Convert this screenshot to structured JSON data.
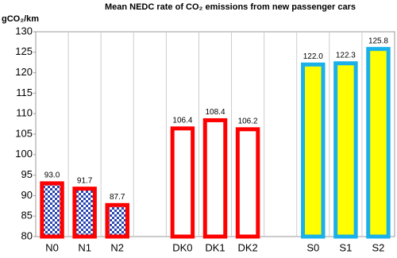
{
  "chart_data": {
    "type": "bar",
    "title": "Mean NEDC rate of CO₂ emissions from new passenger cars",
    "y_label": "gCO₂/km",
    "categories": [
      "N0",
      "N1",
      "N2",
      null,
      "DK0",
      "DK1",
      "DK2",
      null,
      "S0",
      "S1",
      "S2"
    ],
    "series": [
      {
        "color": "#ff0000",
        "fill": "#2a46b0",
        "pattern": "checker",
        "values": [
          93.0,
          91.7,
          87.7,
          null,
          null,
          null,
          null,
          null,
          null,
          null,
          null
        ],
        "value_labels": [
          "93.0",
          "91.7",
          "87.7",
          null,
          null,
          null,
          null,
          null,
          null,
          null,
          null
        ]
      },
      {
        "color": "#ff0000",
        "fill": "#ffffff",
        "values": [
          null,
          null,
          null,
          null,
          106.4,
          108.4,
          106.2,
          null,
          null,
          null,
          null
        ],
        "value_labels": [
          null,
          null,
          null,
          null,
          "106.4",
          "108.4",
          "106.2",
          null,
          null,
          null,
          null
        ]
      },
      {
        "color": "#1ab0ea",
        "fill": "#ffff00",
        "values": [
          null,
          null,
          null,
          null,
          null,
          null,
          null,
          null,
          122.0,
          122.3,
          125.8
        ],
        "value_labels": [
          null,
          null,
          null,
          null,
          null,
          null,
          null,
          null,
          "122.0",
          "122.3",
          "125.8"
        ]
      }
    ],
    "ylim": [
      80,
      130
    ],
    "yticks": [
      80,
      85,
      90,
      95,
      100,
      105,
      110,
      115,
      120,
      125,
      130
    ],
    "grid": "x"
  }
}
